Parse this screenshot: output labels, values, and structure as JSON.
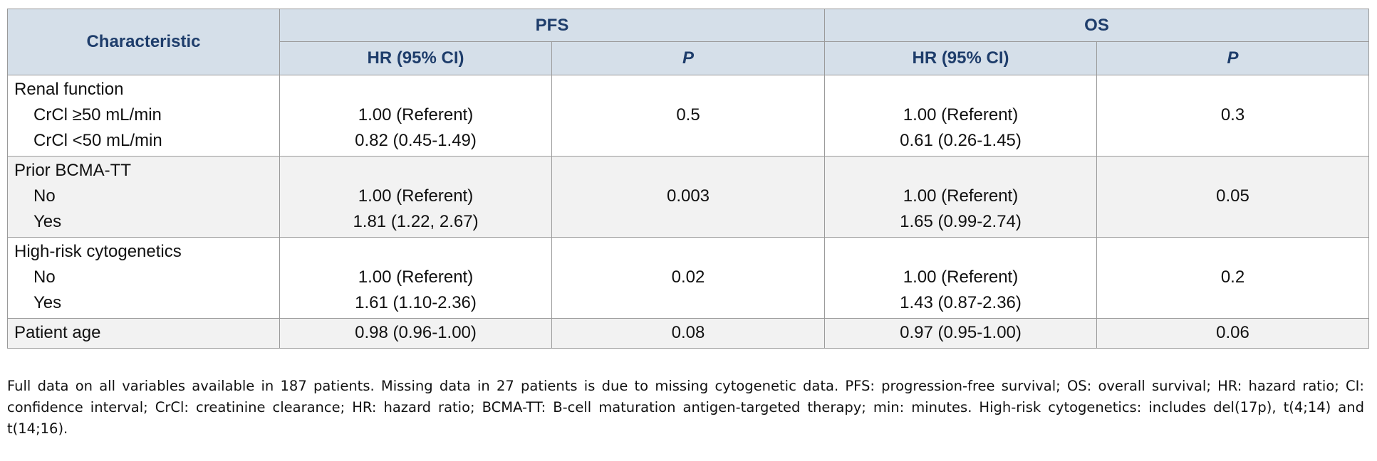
{
  "table": {
    "header": {
      "characteristic": "Characteristic",
      "groups": [
        {
          "title": "PFS",
          "hr": "HR (95% CI)",
          "p": "P"
        },
        {
          "title": "OS",
          "hr": "HR (95% CI)",
          "p": "P"
        }
      ]
    },
    "rows": [
      {
        "label": "Renal function",
        "items": [
          {
            "label": "CrCl ≥50 mL/min",
            "pfs_hr": "1.00 (Referent)",
            "os_hr": "1.00 (Referent)"
          },
          {
            "label": "CrCl <50 mL/min",
            "pfs_hr": "0.82 (0.45-1.49)",
            "os_hr": "0.61 (0.26-1.45)"
          }
        ],
        "pfs_p": "0.5",
        "os_p": "0.3"
      },
      {
        "label": "Prior BCMA-TT",
        "items": [
          {
            "label": "No",
            "pfs_hr": "1.00 (Referent)",
            "os_hr": "1.00 (Referent)"
          },
          {
            "label": "Yes",
            "pfs_hr": "1.81 (1.22, 2.67)",
            "os_hr": "1.65 (0.99-2.74)"
          }
        ],
        "pfs_p": "0.003",
        "os_p": "0.05"
      },
      {
        "label": "High-risk cytogenetics",
        "items": [
          {
            "label": "No",
            "pfs_hr": "1.00 (Referent)",
            "os_hr": "1.00 (Referent)"
          },
          {
            "label": "Yes",
            "pfs_hr": "1.61 (1.10-2.36)",
            "os_hr": "1.43 (0.87-2.36)"
          }
        ],
        "pfs_p": "0.02",
        "os_p": "0.2"
      },
      {
        "label": "Patient age",
        "pfs_hr": "0.98 (0.96-1.00)",
        "pfs_p": "0.08",
        "os_hr": "0.97 (0.95-1.00)",
        "os_p": "0.06"
      }
    ],
    "footnote": "Full data on all variables available in 187 patients. Missing data in 27 patients is due to missing cytogenetic data. PFS: progression-free survival; OS: overall survival; HR: hazard ratio; CI: confidence interval; CrCl: creatinine clearance; HR: hazard ratio; BCMA-TT: B-cell maturation antigen-targeted therapy; min: minutes. High-risk cytogenetics: includes del(17p), t(4;14) and t(14;16)."
  }
}
